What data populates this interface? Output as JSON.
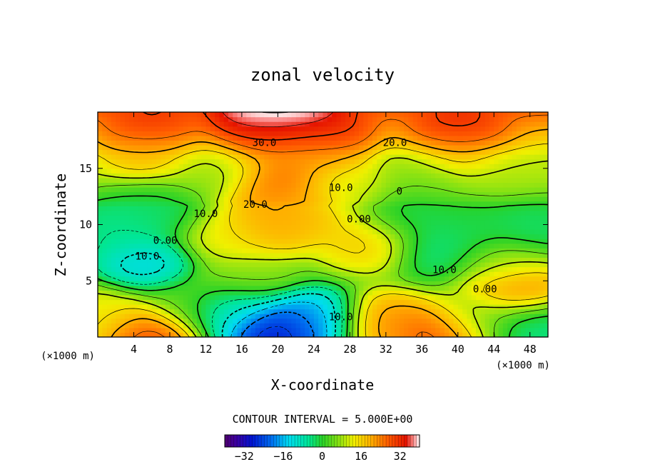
{
  "chart_data": {
    "type": "heatmap",
    "title": "zonal velocity",
    "xlabel": "X-coordinate",
    "ylabel": "Z-coordinate",
    "x_unit_left": "(×1000 m)",
    "x_unit_right": "(×1000 m)",
    "xlim": [
      0,
      50
    ],
    "ylim": [
      0,
      20
    ],
    "x_ticks": [
      4,
      8,
      12,
      16,
      20,
      24,
      28,
      32,
      36,
      40,
      44,
      48
    ],
    "y_ticks": [
      5,
      10,
      15
    ],
    "contour_interval_text": "CONTOUR INTERVAL = 5.000E+00",
    "contour_interval": 5,
    "colorbar": {
      "range": [
        -40,
        40
      ],
      "ticks": [
        -32,
        -16,
        0,
        16,
        32
      ]
    },
    "contour_labels": [
      {
        "text": "30.0",
        "x": 18.5,
        "z": 17.3
      },
      {
        "text": "20.0",
        "x": 33.0,
        "z": 17.3
      },
      {
        "text": "20.0",
        "x": 17.5,
        "z": 11.8
      },
      {
        "text": "10.0",
        "x": 12.0,
        "z": 11.0
      },
      {
        "text": "10.0",
        "x": 27.0,
        "z": 13.3
      },
      {
        "text": "0.00",
        "x": 29.0,
        "z": 10.5
      },
      {
        "text": "0",
        "x": 33.5,
        "z": 13.0
      },
      {
        "text": "0.00",
        "x": 7.5,
        "z": 8.6
      },
      {
        "text": "10.0",
        "x": 5.5,
        "z": 7.2
      },
      {
        "text": "10.0",
        "x": 38.5,
        "z": 6.0
      },
      {
        "text": "0.00",
        "x": 43.0,
        "z": 4.3
      },
      {
        "text": "10.0",
        "x": 27.0,
        "z": 1.8
      }
    ],
    "features": [
      {
        "x": 20,
        "z": 20,
        "value": 42
      },
      {
        "x": 18,
        "z": 17.5,
        "value": 32
      },
      {
        "x": 25,
        "z": 17,
        "value": 28
      },
      {
        "x": 40,
        "z": 17,
        "value": 26
      },
      {
        "x": 6,
        "z": 17,
        "value": 24
      },
      {
        "x": 20,
        "z": 13.5,
        "value": 26
      },
      {
        "x": 19,
        "z": 10,
        "value": 22
      },
      {
        "x": 23,
        "z": 11,
        "value": 20
      },
      {
        "x": 14,
        "z": 9,
        "value": 14
      },
      {
        "x": 28,
        "z": 13,
        "value": 12
      },
      {
        "x": 30,
        "z": 8.5,
        "value": 18
      },
      {
        "x": 16,
        "z": 5,
        "value": 8
      },
      {
        "x": 5.5,
        "z": 6.5,
        "value": -14
      },
      {
        "x": 2,
        "z": 10,
        "value": -6
      },
      {
        "x": 7,
        "z": 11,
        "value": -4
      },
      {
        "x": 38,
        "z": 8,
        "value": -5
      },
      {
        "x": 34,
        "z": 11,
        "value": -3
      },
      {
        "x": 42,
        "z": 10,
        "value": -2
      },
      {
        "x": 48,
        "z": 10,
        "value": -4
      },
      {
        "x": 20,
        "z": 0.5,
        "value": -34
      },
      {
        "x": 24,
        "z": 1.5,
        "value": -18
      },
      {
        "x": 15,
        "z": 2.5,
        "value": -14
      },
      {
        "x": 5.5,
        "z": 0.3,
        "value": 32
      },
      {
        "x": 1,
        "z": 2,
        "value": 14
      },
      {
        "x": 10,
        "z": 3,
        "value": 4
      },
      {
        "x": 32,
        "z": 1.3,
        "value": 24
      },
      {
        "x": 38,
        "z": 0.3,
        "value": 32
      },
      {
        "x": 42,
        "z": 1.5,
        "value": 6
      },
      {
        "x": 46.5,
        "z": 4.2,
        "value": 26
      },
      {
        "x": 48,
        "z": 1.0,
        "value": -6
      },
      {
        "x": 45,
        "z": 6.5,
        "value": 8
      },
      {
        "x": 13,
        "z": 15,
        "value": 8
      },
      {
        "x": 36,
        "z": 14.5,
        "value": 6
      },
      {
        "x": 45,
        "z": 14.5,
        "value": 9
      }
    ]
  }
}
